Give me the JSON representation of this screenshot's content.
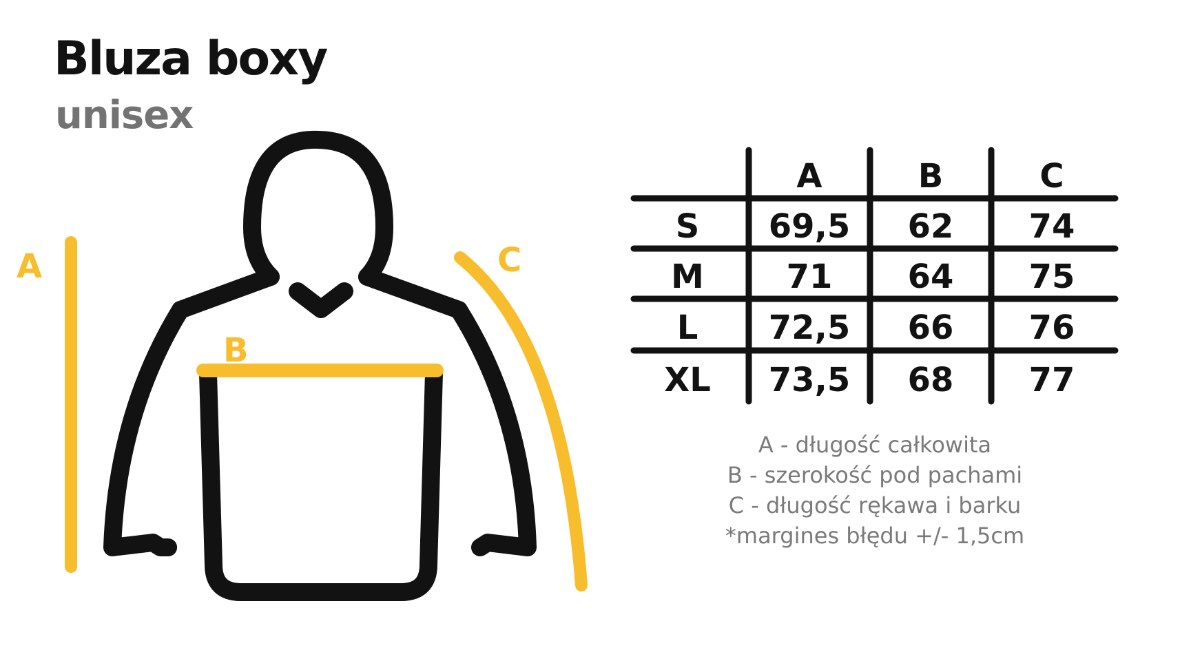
{
  "header": {
    "title": "Bluza boxy",
    "subtitle": "unisex"
  },
  "illustration": {
    "dimension_labels": {
      "a": "A",
      "b": "B",
      "c": "C"
    },
    "colors": {
      "outline": "#121212",
      "dimension": "#f8bd2c"
    },
    "icon": "hoodie-outline-icon"
  },
  "size_table": {
    "columns": [
      "A",
      "B",
      "C"
    ],
    "rows": [
      {
        "size": "S",
        "values": [
          "69,5",
          "62",
          "74"
        ]
      },
      {
        "size": "M",
        "values": [
          "71",
          "64",
          "75"
        ]
      },
      {
        "size": "L",
        "values": [
          "72,5",
          "66",
          "76"
        ]
      },
      {
        "size": "XL",
        "values": [
          "73,5",
          "68",
          "77"
        ]
      }
    ]
  },
  "legend": {
    "lines": [
      "A - długość całkowita",
      "B - szerokość pod pachami",
      "C - długość rękawa i barku",
      "*margines błędu +/- 1,5cm"
    ]
  }
}
